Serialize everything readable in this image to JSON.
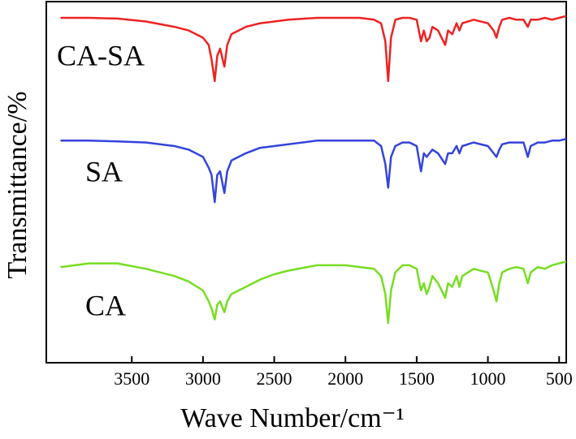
{
  "chart_data": {
    "type": "line",
    "y_label": "Transmittance/%",
    "x_label": "Wave Number/cm⁻¹",
    "xlim": [
      4100,
      450
    ],
    "xticks": [
      3500,
      3000,
      2500,
      2000,
      1500,
      1000,
      500
    ],
    "ylim": [
      0,
      100
    ],
    "x": [
      4000,
      3800,
      3600,
      3400,
      3200,
      3100,
      3000,
      2960,
      2940,
      2918,
      2900,
      2880,
      2850,
      2830,
      2800,
      2700,
      2600,
      2500,
      2400,
      2200,
      2000,
      1900,
      1800,
      1750,
      1720,
      1700,
      1680,
      1650,
      1600,
      1550,
      1500,
      1470,
      1450,
      1430,
      1410,
      1390,
      1350,
      1300,
      1280,
      1250,
      1220,
      1200,
      1180,
      1100,
      1000,
      960,
      940,
      920,
      900,
      850,
      800,
      750,
      720,
      700,
      650,
      600,
      550,
      500,
      450
    ],
    "series": [
      {
        "name": "CA-SA",
        "color": "#ee2222",
        "values": [
          95.5,
          95.5,
          95.3,
          94.5,
          93,
          92,
          90,
          88,
          84,
          78,
          85,
          87,
          82,
          88,
          91,
          93,
          94,
          94.5,
          95,
          95.5,
          95.5,
          95.5,
          95,
          94,
          89,
          78,
          90,
          95,
          95.5,
          95.5,
          95,
          89,
          92,
          89,
          90,
          93,
          92,
          88,
          92,
          91,
          94,
          92,
          94,
          95,
          94,
          92,
          90,
          93,
          95,
          95.5,
          95,
          95,
          93,
          95,
          95,
          95.5,
          95,
          95.5,
          96
        ]
      },
      {
        "name": "SA",
        "color": "#3344dd",
        "values": [
          61.5,
          61.5,
          61.3,
          61,
          60,
          59,
          57,
          54,
          52,
          44.5,
          52,
          53,
          47,
          53,
          56,
          58,
          59.5,
          60,
          60.5,
          61.5,
          61.5,
          61.5,
          61.5,
          60,
          55,
          48.5,
          57,
          60,
          61,
          61,
          60,
          53,
          58,
          57,
          58,
          59,
          58,
          55,
          58,
          58,
          60,
          58,
          60,
          61,
          60,
          58,
          57,
          59,
          60.5,
          61,
          61,
          61,
          57,
          60,
          61,
          61,
          61.5,
          61.5,
          62
        ]
      },
      {
        "name": "CA",
        "color": "#77dd22",
        "values": [
          26.5,
          27.5,
          27.5,
          26,
          24,
          22.5,
          20,
          17,
          15,
          12,
          16,
          17,
          14,
          17,
          19,
          21,
          23,
          24.5,
          25.5,
          27,
          27,
          26.5,
          26,
          24,
          19,
          11,
          20,
          25,
          27,
          27,
          26,
          20,
          22,
          19,
          21,
          24,
          22,
          18,
          22,
          21,
          24,
          21,
          24,
          26,
          25,
          20,
          17,
          22,
          25,
          26,
          26.5,
          26,
          22,
          25,
          26.5,
          26,
          27,
          27.5,
          28
        ]
      }
    ]
  }
}
